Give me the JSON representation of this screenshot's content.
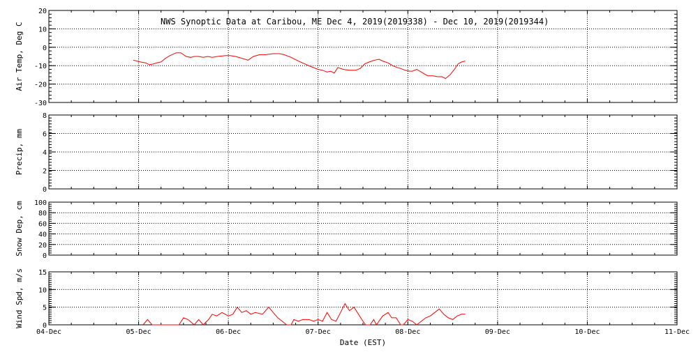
{
  "title": "NWS Synoptic Data at Caribou, ME   Dec  4, 2019(2019338) - Dec 10, 2019(2019344)",
  "x_axis": {
    "label": "Date (EST)",
    "ticks": [
      "04-Dec",
      "05-Dec",
      "06-Dec",
      "07-Dec",
      "08-Dec",
      "09-Dec",
      "10-Dec",
      "11-Dec"
    ],
    "range_days": [
      0,
      7
    ]
  },
  "colors": {
    "series": "#ff0000",
    "axes": "#000000",
    "grid": "#000000",
    "background": "#ffffff"
  },
  "chart_data": [
    {
      "type": "line",
      "panel": "air-temp",
      "ylabel": "Air Temp, Deg C",
      "ylim": [
        -30,
        20
      ],
      "yticks": [
        -30,
        -20,
        -10,
        0,
        10,
        20
      ],
      "grid": true,
      "series": [
        {
          "values_note": "",
          "x": [
            0.94,
            0.98,
            1.02,
            1.08,
            1.12,
            1.17,
            1.2,
            1.25,
            1.3,
            1.35,
            1.42,
            1.47,
            1.53,
            1.58,
            1.62,
            1.67,
            1.72,
            1.77,
            1.82,
            1.88,
            1.97,
            2.02,
            2.08,
            2.15,
            2.22,
            2.28,
            2.35,
            2.42,
            2.5,
            2.57,
            2.62,
            2.7,
            2.78,
            2.85,
            2.92,
            3.0,
            3.05,
            3.1,
            3.14,
            3.18,
            3.22,
            3.28,
            3.35,
            3.42,
            3.47,
            3.52,
            3.57,
            3.63,
            3.68,
            3.72,
            3.78,
            3.83,
            3.88,
            3.92,
            3.97,
            4.02,
            4.05,
            4.1,
            4.15,
            4.22,
            4.28,
            4.33,
            4.38,
            4.42,
            4.47,
            4.52,
            4.56,
            4.6,
            4.64
          ],
          "y": [
            -7,
            -7.5,
            -8,
            -8.5,
            -9.5,
            -9,
            -8.5,
            -8,
            -6,
            -4.5,
            -3,
            -3,
            -5,
            -5.5,
            -5,
            -5,
            -5.5,
            -5,
            -5.5,
            -5,
            -4.5,
            -4.5,
            -5,
            -6,
            -7,
            -5,
            -4,
            -4,
            -3.5,
            -3.5,
            -4,
            -5.5,
            -7.5,
            -9,
            -10.5,
            -12,
            -12.5,
            -13.5,
            -13,
            -14,
            -11,
            -12,
            -12.5,
            -12.5,
            -11.5,
            -9,
            -8,
            -7,
            -6.5,
            -7.5,
            -8.5,
            -10,
            -11,
            -11.5,
            -12.5,
            -13,
            -13,
            -12,
            -13.5,
            -15.5,
            -15.5,
            -16,
            -16,
            -17,
            -15,
            -12,
            -9,
            -8,
            -7.5
          ]
        }
      ]
    },
    {
      "type": "line",
      "panel": "precip",
      "ylabel": "Precip, mm",
      "ylim": [
        0,
        8
      ],
      "yticks": [
        0,
        2,
        4,
        6,
        8
      ],
      "grid": true,
      "series": []
    },
    {
      "type": "line",
      "panel": "snow-depth",
      "ylabel": "Snow Dep, cm",
      "ylim": [
        0,
        100
      ],
      "yticks": [
        0,
        20,
        40,
        60,
        80,
        100
      ],
      "grid": true,
      "series": []
    },
    {
      "type": "line",
      "panel": "wind-speed",
      "ylabel": "Wind Spd, m/s",
      "ylim": [
        0,
        15
      ],
      "yticks": [
        0,
        5,
        10,
        15
      ],
      "grid": true,
      "series": [
        {
          "values_note": "",
          "x": [
            1.05,
            1.1,
            1.15,
            1.45,
            1.5,
            1.55,
            1.62,
            1.67,
            1.72,
            1.78,
            1.82,
            1.87,
            1.93,
            2.0,
            2.05,
            2.1,
            2.15,
            2.2,
            2.25,
            2.3,
            2.38,
            2.45,
            2.5,
            2.55,
            2.6,
            2.65,
            2.7,
            2.73,
            2.78,
            2.83,
            2.9,
            2.95,
            3.0,
            3.05,
            3.1,
            3.15,
            3.2,
            3.25,
            3.3,
            3.35,
            3.4,
            3.45,
            3.5,
            3.53,
            3.58,
            3.62,
            3.65,
            3.72,
            3.78,
            3.82,
            3.87,
            3.92,
            3.95,
            4.0,
            4.05,
            4.1,
            4.15,
            4.2,
            4.25,
            4.3,
            4.35,
            4.4,
            4.45,
            4.5,
            4.55,
            4.6,
            4.64
          ],
          "y": [
            0,
            1.5,
            0,
            0,
            2,
            1.5,
            0,
            1.5,
            0,
            1.5,
            3,
            2.5,
            3.5,
            2.5,
            3,
            5,
            3.5,
            4,
            3,
            3.5,
            3,
            5,
            3.5,
            2,
            1,
            0,
            0,
            1.5,
            1,
            1.5,
            1.5,
            1,
            1.5,
            1,
            3.5,
            1.5,
            1,
            3.5,
            6,
            4,
            5,
            3,
            1,
            0,
            0,
            1.5,
            0,
            2.5,
            3.5,
            2,
            2,
            0,
            0,
            1.5,
            1,
            0,
            1,
            2,
            2.5,
            3.5,
            4.5,
            3,
            2,
            1.5,
            2.5,
            3,
            3
          ]
        }
      ]
    }
  ]
}
